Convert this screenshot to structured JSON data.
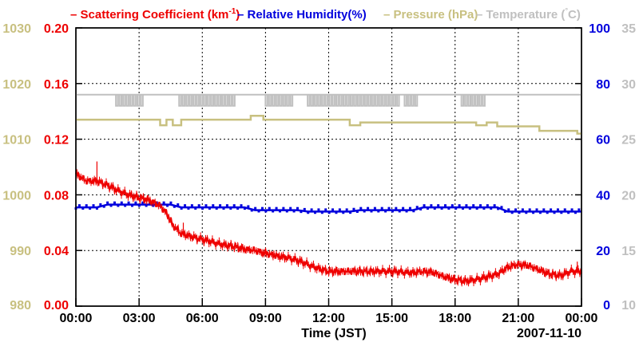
{
  "chart_data": {
    "type": "line",
    "date_label": "2007-11-10",
    "xlabel": "Time (JST)",
    "x_ticks": [
      "00:00",
      "03:00",
      "06:00",
      "09:00",
      "12:00",
      "15:00",
      "18:00",
      "21:00",
      "00:00"
    ],
    "xlim": [
      0,
      24
    ],
    "legend": {
      "scattering": {
        "prefix": "– Scattering Coefficient (km",
        "sup": "-1",
        "suffix": ")"
      },
      "humidity": "– Relative Humidity(%)",
      "pressure": "– Pressure (hPa)",
      "temperature": "– Temperature (",
      "temperature_unit": "C)",
      "temperature_degree": "°"
    },
    "axes": {
      "scattering": {
        "label": "Scattering Coefficient",
        "ylim": [
          0,
          0.2
        ],
        "ticks": [
          "0.00",
          "0.04",
          "0.08",
          "0.12",
          "0.16",
          "0.20"
        ],
        "color": "#ee0000"
      },
      "humidity": {
        "label": "Relative Humidity",
        "ylim": [
          0,
          100
        ],
        "ticks": [
          "0",
          "20",
          "40",
          "60",
          "80",
          "100"
        ],
        "color": "#0000dd"
      },
      "pressure": {
        "label": "Pressure",
        "ylim": [
          980,
          1030
        ],
        "ticks": [
          "980",
          "990",
          "1000",
          "1010",
          "1020",
          "1030"
        ],
        "color": "#c8c080"
      },
      "temperature": {
        "label": "Temperature",
        "ylim": [
          10,
          35
        ],
        "ticks": [
          "10",
          "15",
          "20",
          "25",
          "30",
          "35"
        ],
        "color": "#c0c0c0"
      }
    },
    "series": [
      {
        "name": "Scattering Coefficient",
        "axis": "scattering",
        "color": "#ee0000",
        "x": [
          0,
          0.5,
          1,
          1.5,
          2,
          2.5,
          3,
          3.5,
          4,
          4.3,
          4.6,
          5,
          5.5,
          6,
          6.5,
          7,
          7.5,
          8,
          8.5,
          9,
          9.5,
          10,
          10.5,
          11,
          11.5,
          12,
          13,
          14,
          15,
          16,
          16.5,
          17,
          17.5,
          18,
          18.5,
          19,
          19.5,
          20,
          20.5,
          21,
          21.5,
          22,
          22.5,
          23,
          23.5,
          24
        ],
        "y": [
          0.095,
          0.09,
          0.09,
          0.087,
          0.083,
          0.08,
          0.078,
          0.076,
          0.072,
          0.067,
          0.058,
          0.052,
          0.05,
          0.048,
          0.046,
          0.044,
          0.043,
          0.041,
          0.04,
          0.038,
          0.036,
          0.035,
          0.033,
          0.03,
          0.027,
          0.025,
          0.025,
          0.025,
          0.025,
          0.024,
          0.025,
          0.024,
          0.021,
          0.019,
          0.018,
          0.019,
          0.021,
          0.023,
          0.028,
          0.03,
          0.029,
          0.026,
          0.023,
          0.022,
          0.025,
          0.025
        ]
      },
      {
        "name": "Relative Humidity",
        "axis": "humidity",
        "color": "#0000dd",
        "x": [
          0,
          1,
          1.5,
          4.5,
          5,
          8,
          8.5,
          10.5,
          11,
          13,
          13.5,
          16,
          16.5,
          20,
          20.5,
          24
        ],
        "y": [
          35.5,
          35.5,
          36.5,
          36.5,
          35.5,
          35.5,
          34.5,
          34.5,
          34,
          34,
          34.5,
          34.5,
          35.5,
          35.5,
          34,
          34
        ]
      },
      {
        "name": "Pressure",
        "axis": "pressure",
        "color": "#c8c080",
        "x": [
          0,
          4.0,
          4.0,
          4.3,
          4.3,
          4.6,
          4.6,
          5.0,
          5.0,
          8.3,
          8.3,
          8.9,
          8.9,
          13.0,
          13.0,
          13.5,
          13.5,
          19.0,
          19.0,
          19.5,
          19.5,
          20.0,
          20.0,
          22.0,
          22.0,
          23.8,
          23.8,
          24
        ],
        "y": [
          1013.5,
          1013.5,
          1012.5,
          1012.5,
          1013.5,
          1013.5,
          1012.5,
          1012.5,
          1013.5,
          1013.5,
          1014.2,
          1014.2,
          1013.5,
          1013.5,
          1012.5,
          1012.5,
          1013.0,
          1013.0,
          1012.5,
          1012.5,
          1013.0,
          1013.0,
          1012.3,
          1012.3,
          1011.5,
          1011.5,
          1011.0,
          1011.0
        ]
      },
      {
        "name": "Temperature",
        "axis": "temperature",
        "color": "#c0c0c0",
        "x": [
          0,
          24
        ],
        "y": [
          29.0,
          29.0
        ],
        "dip_to": 28.0,
        "dip_ranges": [
          [
            1.9,
            3.2
          ],
          [
            4.9,
            7.6
          ],
          [
            9.0,
            10.3
          ],
          [
            11.0,
            15.3
          ],
          [
            15.6,
            16.2
          ],
          [
            18.3,
            19.4
          ]
        ]
      }
    ]
  }
}
